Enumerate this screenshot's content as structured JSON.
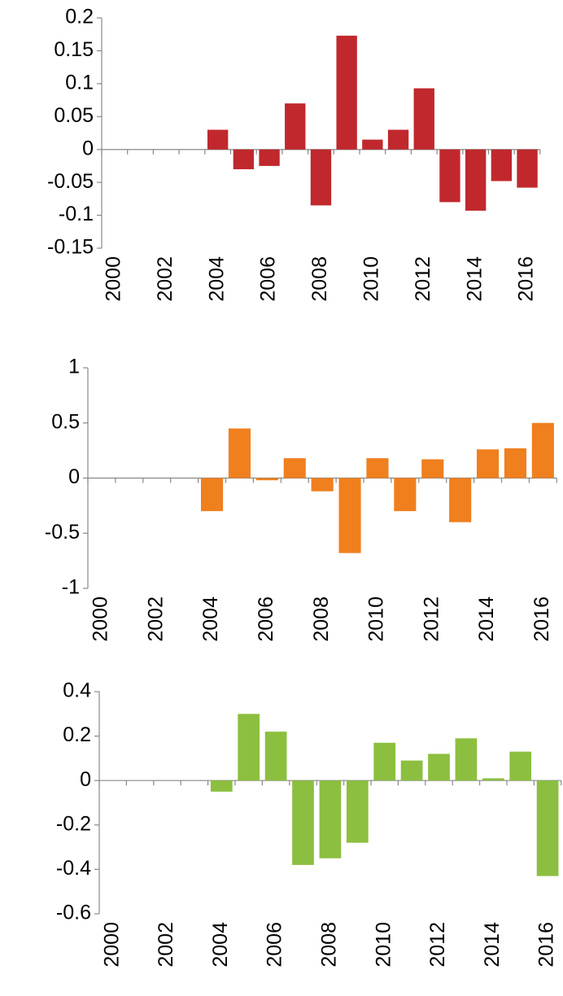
{
  "chart_data": [
    {
      "type": "bar",
      "color": "#c0282d",
      "categories": [
        "2000",
        null,
        "2002",
        null,
        "2004",
        null,
        "2006",
        null,
        "2008",
        null,
        "2010",
        null,
        "2012",
        null,
        "2014",
        null,
        "2016"
      ],
      "values": [
        null,
        null,
        null,
        null,
        0.03,
        -0.03,
        -0.025,
        0.07,
        -0.085,
        0.173,
        0.015,
        0.03,
        0.093,
        -0.08,
        -0.093,
        -0.048,
        -0.058
      ],
      "ylim": [
        -0.15,
        0.2
      ],
      "yticks": [
        -0.15,
        -0.1,
        -0.05,
        0,
        0.05,
        0.1,
        0.15,
        0.2
      ]
    },
    {
      "type": "bar",
      "color": "#f07f1e",
      "categories": [
        "2000",
        null,
        "2002",
        null,
        "2004",
        null,
        "2006",
        null,
        "2008",
        null,
        "2010",
        null,
        "2012",
        null,
        "2014",
        null,
        "2016"
      ],
      "values": [
        null,
        null,
        null,
        null,
        -0.3,
        0.45,
        -0.02,
        0.18,
        -0.12,
        -0.68,
        0.18,
        -0.3,
        0.17,
        -0.4,
        0.26,
        0.27,
        0.5
      ],
      "ylim": [
        -1,
        1
      ],
      "yticks": [
        -1,
        -0.5,
        0,
        0.5,
        1
      ]
    },
    {
      "type": "bar",
      "color": "#8cbf3f",
      "categories": [
        "2000",
        null,
        "2002",
        null,
        "2004",
        null,
        "2006",
        null,
        "2008",
        null,
        "2010",
        null,
        "2012",
        null,
        "2014",
        null,
        "2016"
      ],
      "values": [
        null,
        null,
        null,
        null,
        -0.05,
        0.3,
        0.22,
        -0.38,
        -0.35,
        -0.28,
        0.17,
        0.09,
        0.12,
        0.19,
        0.01,
        0.13,
        -0.43
      ],
      "ylim": [
        -0.6,
        0.4
      ],
      "yticks": [
        -0.6,
        -0.4,
        -0.2,
        0,
        0.2,
        0.4
      ]
    }
  ]
}
